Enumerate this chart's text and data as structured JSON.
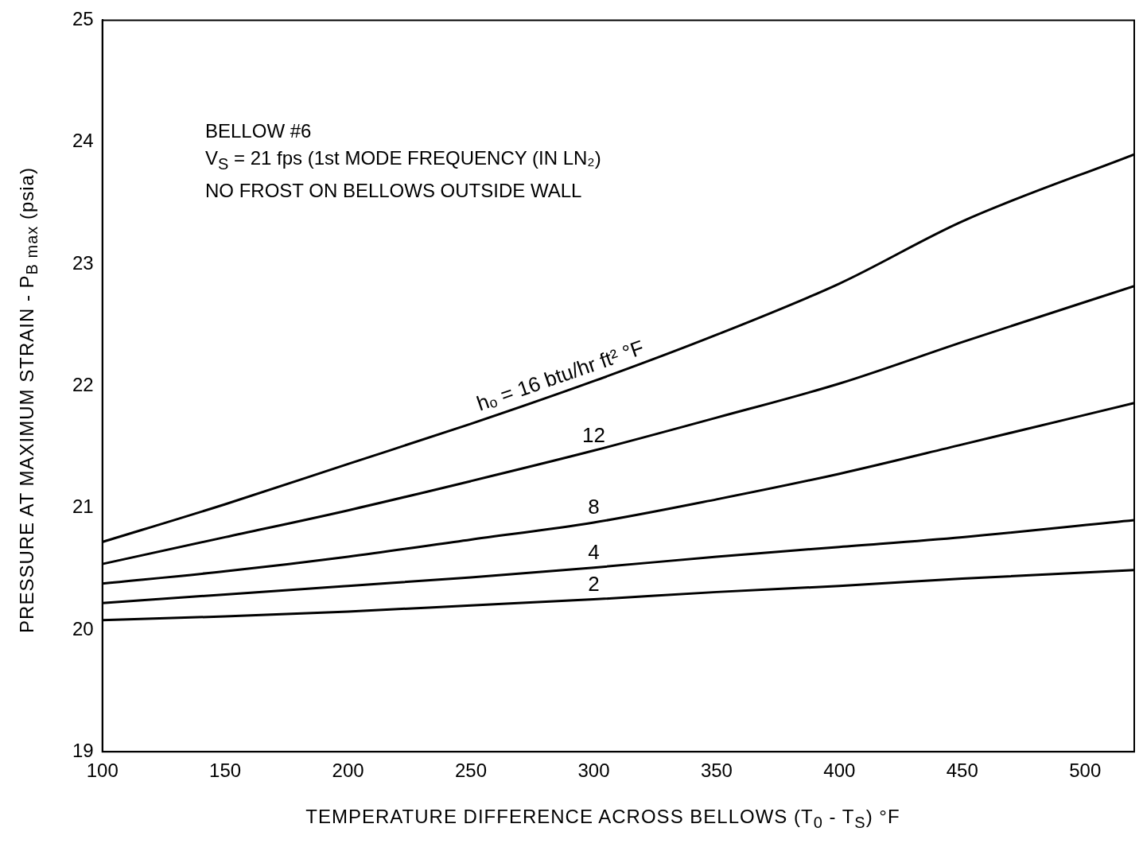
{
  "chart_data": {
    "type": "line",
    "xlabel": "TEMPERATURE DIFFERENCE ACROSS BELLOWS (T$_{0}$ - T$_{S}$) °F",
    "ylabel": "PRESSURE AT MAXIMUM STRAIN - P$_{B max}$ (psia)",
    "annotations": [
      "BELLOW #6",
      "V$_{S}$ = 21 fps (1st MODE FREQUENCY (IN LN₂)",
      "NO FROST ON BELLOWS OUTSIDE WALL"
    ],
    "x": [
      100,
      150,
      200,
      250,
      300,
      350,
      400,
      450,
      520
    ],
    "series": [
      {
        "name": "hₒ = 16 btu/hr ft² °F",
        "color": "#000000",
        "values": [
          20.72,
          21.03,
          21.36,
          21.69,
          22.04,
          22.42,
          22.84,
          23.35,
          23.9
        ]
      },
      {
        "name": "12",
        "color": "#000000",
        "values": [
          20.54,
          20.76,
          20.98,
          21.22,
          21.47,
          21.74,
          22.02,
          22.36,
          22.82
        ]
      },
      {
        "name": "8",
        "color": "#000000",
        "values": [
          20.38,
          20.48,
          20.6,
          20.74,
          20.88,
          21.07,
          21.28,
          21.52,
          21.86
        ]
      },
      {
        "name": "4",
        "color": "#000000",
        "values": [
          20.22,
          20.29,
          20.36,
          20.43,
          20.51,
          20.6,
          20.68,
          20.76,
          20.9
        ]
      },
      {
        "name": "2",
        "color": "#000000",
        "values": [
          20.08,
          20.11,
          20.15,
          20.2,
          20.25,
          20.31,
          20.36,
          20.42,
          20.49
        ]
      }
    ],
    "xlim": [
      100,
      520
    ],
    "ylim": [
      19,
      25
    ],
    "xticks": [
      100,
      150,
      200,
      250,
      300,
      350,
      400,
      450,
      500
    ],
    "yticks": [
      19,
      20,
      21,
      22,
      23,
      24,
      25
    ],
    "grid": false,
    "legend": false,
    "marker": "none",
    "line_style": "solid"
  }
}
